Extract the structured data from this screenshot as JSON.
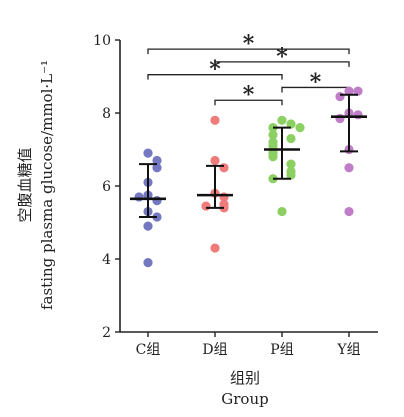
{
  "chart_data": {
    "type": "scatter",
    "title": "",
    "xlabel": "组别",
    "xlabel_en": "Group",
    "ylabel": "空腹血糖值",
    "ylabel_en": "fasting plasma glucose/mmol·L⁻¹",
    "ylim": [
      2,
      10
    ],
    "yticks": [
      "2",
      "4",
      "6",
      "8",
      "10"
    ],
    "ytick_values": [
      2,
      4,
      6,
      8,
      10
    ],
    "categories": [
      "C组",
      "D组",
      "P组",
      "Y组"
    ],
    "groups": [
      {
        "name": "C组",
        "color": "#7478c0",
        "mean": 5.65,
        "sd_low": 5.15,
        "sd_high": 6.6,
        "values": [
          6.9,
          6.7,
          6.5,
          6.1,
          5.75,
          5.6,
          5.7,
          5.3,
          5.15,
          4.9,
          3.9
        ]
      },
      {
        "name": "D组",
        "color": "#ef7b7b",
        "mean": 5.75,
        "sd_low": 5.4,
        "sd_high": 6.55,
        "values": [
          7.8,
          6.7,
          6.5,
          5.8,
          5.7,
          5.5,
          5.4,
          5.45,
          4.3
        ]
      },
      {
        "name": "P组",
        "color": "#8ccf63",
        "mean": 7.0,
        "sd_low": 6.2,
        "sd_high": 7.6,
        "values": [
          7.8,
          7.7,
          7.6,
          7.6,
          7.4,
          7.3,
          7.2,
          7.1,
          7.0,
          6.9,
          6.8,
          6.6,
          6.4,
          6.3,
          6.2,
          5.3
        ]
      },
      {
        "name": "Y组",
        "color": "#c07ec8",
        "mean": 7.9,
        "sd_low": 6.95,
        "sd_high": 8.5,
        "values": [
          8.6,
          8.6,
          8.45,
          8.0,
          7.95,
          7.85,
          7.0,
          6.5,
          5.3
        ]
      }
    ],
    "significance": [
      {
        "from": 0,
        "to": 3,
        "y": 9.75,
        "label": "*"
      },
      {
        "from": 1,
        "to": 3,
        "y": 9.4,
        "label": "*"
      },
      {
        "from": 0,
        "to": 2,
        "y": 9.05,
        "label": "*"
      },
      {
        "from": 2,
        "to": 3,
        "y": 8.7,
        "label": "*"
      },
      {
        "from": 1,
        "to": 2,
        "y": 8.35,
        "label": "*"
      }
    ]
  }
}
